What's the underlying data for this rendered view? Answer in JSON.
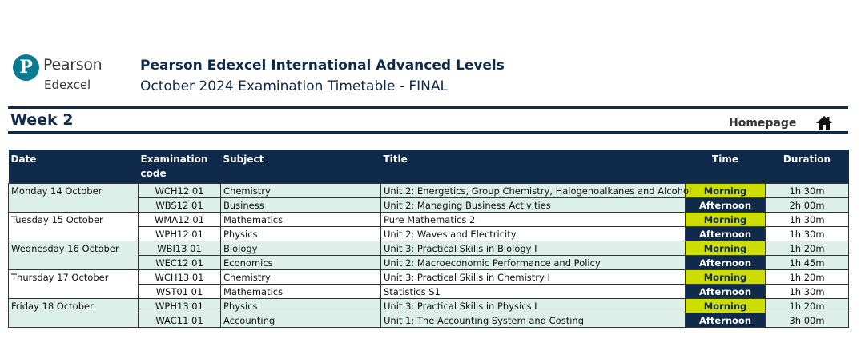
{
  "logo": {
    "line1": "Pearson",
    "line2": "Edexcel",
    "mark": "P",
    "color": "#0a7a8f"
  },
  "header": {
    "title": "Pearson Edexcel International Advanced Levels",
    "subtitle": "October 2024 Examination Timetable - FINAL"
  },
  "week_label": "Week 2",
  "homepage_label": "Homepage",
  "colors": {
    "navy": "#0f2a4a",
    "morning": "#cddd00",
    "shade": "#dcefe8"
  },
  "table": {
    "headers": {
      "date": "Date",
      "code": "Examination code",
      "subject": "Subject",
      "title": "Title",
      "time": "Time",
      "duration": "Duration"
    },
    "rows": [
      {
        "date": "Monday 14 October",
        "code": "WCH12 01",
        "subject": "Chemistry",
        "title": "Unit 2: Energetics, Group Chemistry, Halogenoalkanes and Alcohol",
        "time": "Morning",
        "duration": "1h 30m"
      },
      {
        "date": "",
        "code": "WBS12 01",
        "subject": "Business",
        "title": "Unit 2: Managing Business Activities",
        "time": "Afternoon",
        "duration": "2h 00m"
      },
      {
        "date": "Tuesday 15 October",
        "code": "WMA12 01",
        "subject": "Mathematics",
        "title": "Pure Mathematics 2",
        "time": "Morning",
        "duration": "1h 30m"
      },
      {
        "date": "",
        "code": "WPH12 01",
        "subject": "Physics",
        "title": "Unit 2: Waves and Electricity",
        "time": "Afternoon",
        "duration": "1h 30m"
      },
      {
        "date": "Wednesday 16 October",
        "code": "WBI13 01",
        "subject": "Biology",
        "title": "Unit 3: Practical Skills in Biology I",
        "time": "Morning",
        "duration": "1h 20m"
      },
      {
        "date": "",
        "code": "WEC12 01",
        "subject": "Economics",
        "title": "Unit 2: Macroeconomic Performance and Policy",
        "time": "Afternoon",
        "duration": "1h 45m"
      },
      {
        "date": "Thursday 17 October",
        "code": "WCH13 01",
        "subject": "Chemistry",
        "title": "Unit 3: Practical Skills in Chemistry I",
        "time": "Morning",
        "duration": "1h 20m"
      },
      {
        "date": "",
        "code": "WST01 01",
        "subject": "Mathematics",
        "title": "Statistics S1",
        "time": "Afternoon",
        "duration": "1h 30m"
      },
      {
        "date": "Friday 18 October",
        "code": "WPH13 01",
        "subject": "Physics",
        "title": "Unit 3: Practical Skills in Physics I",
        "time": "Morning",
        "duration": "1h 20m"
      },
      {
        "date": "",
        "code": "WAC11 01",
        "subject": "Accounting",
        "title": "Unit 1: The Accounting System and Costing",
        "time": "Afternoon",
        "duration": "3h 00m"
      }
    ]
  }
}
